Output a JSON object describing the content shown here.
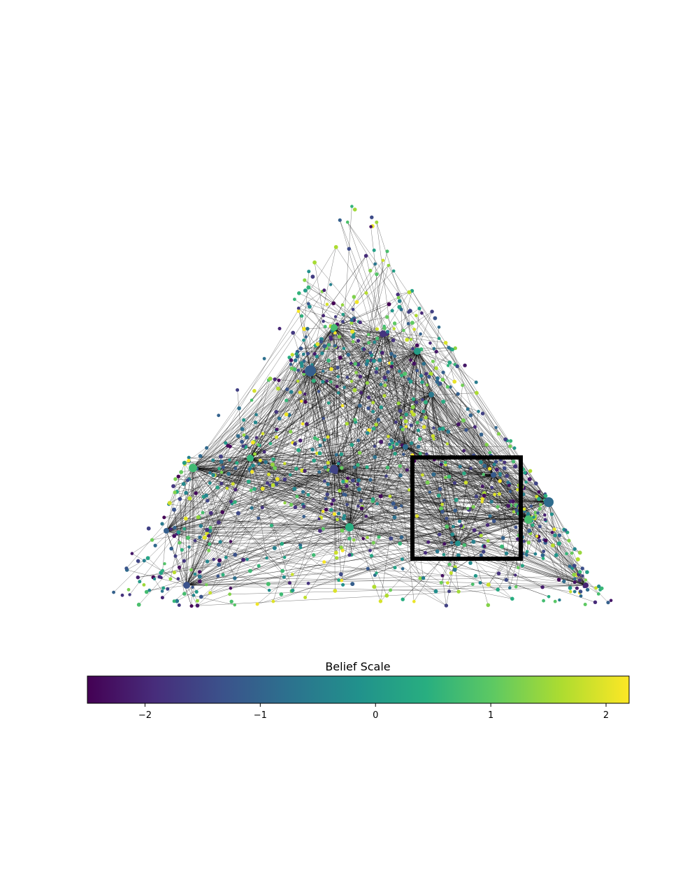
{
  "figure": {
    "colorbar": {
      "title": "Belief Scale",
      "colormap": "viridis",
      "range": [
        -2.5,
        2.2
      ],
      "ticks": [
        {
          "value": -2,
          "label": "−2"
        },
        {
          "value": -1,
          "label": "−1"
        },
        {
          "value": 0,
          "label": "0"
        },
        {
          "value": 1,
          "label": "1"
        },
        {
          "value": 2,
          "label": "2"
        }
      ]
    },
    "network": {
      "layout": "triangle",
      "node_count": 1000,
      "hub_count": 17,
      "edge_color": "#000000",
      "highlight_box": true
    }
  }
}
